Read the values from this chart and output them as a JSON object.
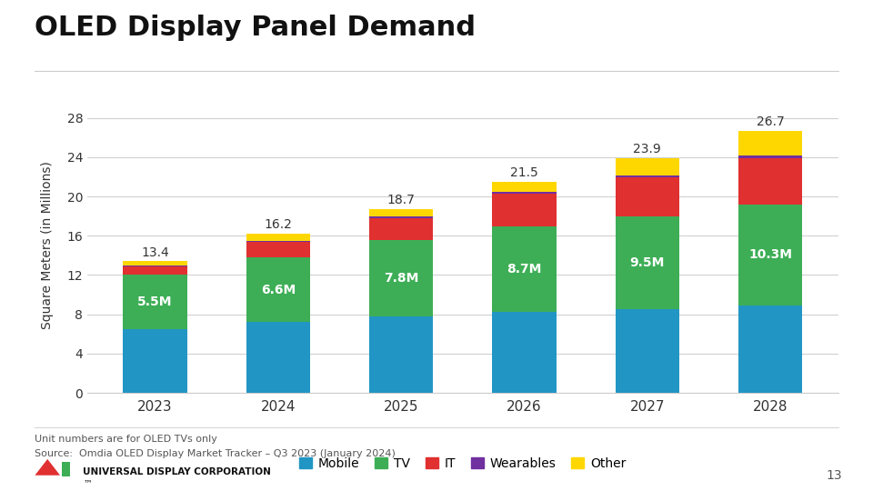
{
  "title": "OLED Display Panel Demand",
  "ylabel": "Square Meters (in Millions)",
  "years": [
    "2023",
    "2024",
    "2025",
    "2026",
    "2027",
    "2028"
  ],
  "totals": [
    13.4,
    16.2,
    18.7,
    21.5,
    23.9,
    26.7
  ],
  "mobile": [
    6.5,
    7.2,
    7.75,
    8.2,
    8.5,
    8.9
  ],
  "tv": [
    5.5,
    6.6,
    7.8,
    8.7,
    9.5,
    10.3
  ],
  "it": [
    0.85,
    1.55,
    2.25,
    3.4,
    3.9,
    4.7
  ],
  "wearables": [
    0.15,
    0.15,
    0.2,
    0.2,
    0.25,
    0.3
  ],
  "other": [
    0.4,
    0.7,
    0.7,
    1.0,
    1.75,
    2.5
  ],
  "colors": {
    "mobile": "#2196c4",
    "tv": "#3dae56",
    "it": "#e03030",
    "wearables": "#7030a0",
    "other": "#ffd700"
  },
  "tv_labels": [
    "5.5M",
    "6.6M",
    "7.8M",
    "8.7M",
    "9.5M",
    "10.3M"
  ],
  "source_text": "Source:  Omdia OLED Display Market Tracker – Q3 2023 (January 2024)",
  "footnote": "Unit numbers are for OLED TVs only",
  "background_color": "#ffffff",
  "ylim": [
    0,
    30
  ],
  "yticks": [
    0,
    4,
    8,
    12,
    16,
    20,
    24,
    28
  ],
  "page_number": "13"
}
